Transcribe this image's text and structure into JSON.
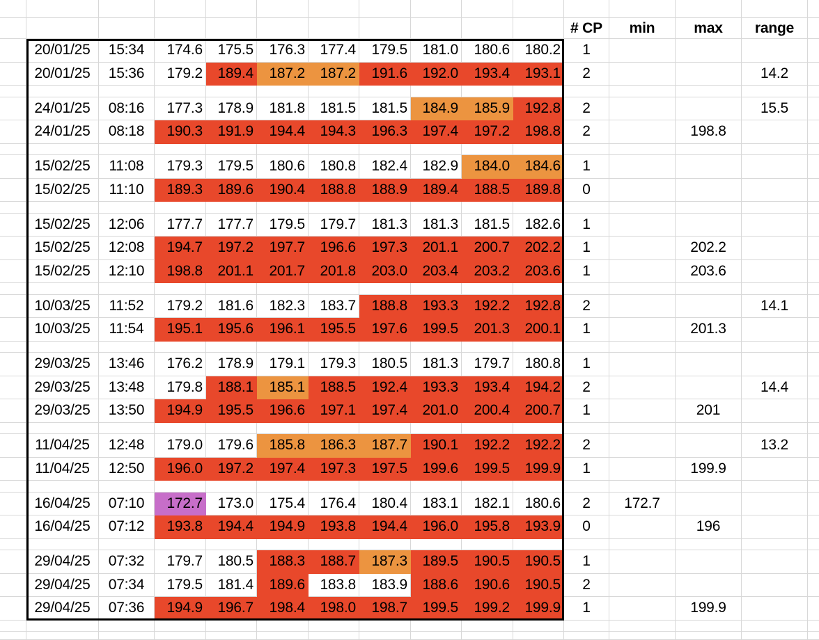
{
  "colors": {
    "fill_red": "#E8482B",
    "fill_orange": "#EC9440",
    "fill_purple": "#C76EC9",
    "gridline": "#D8D8D8",
    "region_border": "#000000"
  },
  "header": {
    "cp": "# CP",
    "min": "min",
    "max": "max",
    "range": "range"
  },
  "groups": [
    {
      "rows": [
        {
          "date": "20/01/25",
          "time": "15:34",
          "values": [
            "174.6",
            "175.5",
            "176.3",
            "177.4",
            "179.5",
            "181.0",
            "180.6",
            "180.2"
          ],
          "fills": [
            "w",
            "w",
            "w",
            "w",
            "w",
            "w",
            "w",
            "w"
          ],
          "cp": "1",
          "min": "",
          "max": "",
          "range": ""
        },
        {
          "date": "20/01/25",
          "time": "15:36",
          "values": [
            "179.2",
            "189.4",
            "187.2",
            "187.2",
            "191.6",
            "192.0",
            "193.4",
            "193.1"
          ],
          "fills": [
            "w",
            "r",
            "o",
            "o",
            "r",
            "r",
            "r",
            "r"
          ],
          "cp": "2",
          "min": "",
          "max": "",
          "range": "14.2"
        }
      ]
    },
    {
      "rows": [
        {
          "date": "24/01/25",
          "time": "08:16",
          "values": [
            "177.3",
            "178.9",
            "181.8",
            "181.5",
            "181.5",
            "184.9",
            "185.9",
            "192.8"
          ],
          "fills": [
            "w",
            "w",
            "w",
            "w",
            "w",
            "o",
            "o",
            "r"
          ],
          "cp": "2",
          "min": "",
          "max": "",
          "range": "15.5"
        },
        {
          "date": "24/01/25",
          "time": "08:18",
          "values": [
            "190.3",
            "191.9",
            "194.4",
            "194.3",
            "196.3",
            "197.4",
            "197.2",
            "198.8"
          ],
          "fills": [
            "r",
            "r",
            "r",
            "r",
            "r",
            "r",
            "r",
            "r"
          ],
          "cp": "2",
          "min": "",
          "max": "198.8",
          "range": ""
        }
      ]
    },
    {
      "rows": [
        {
          "date": "15/02/25",
          "time": "11:08",
          "values": [
            "179.3",
            "179.5",
            "180.6",
            "180.8",
            "182.4",
            "182.9",
            "184.0",
            "184.6"
          ],
          "fills": [
            "w",
            "w",
            "w",
            "w",
            "w",
            "w",
            "o",
            "o"
          ],
          "cp": "1",
          "min": "",
          "max": "",
          "range": ""
        },
        {
          "date": "15/02/25",
          "time": "11:10",
          "values": [
            "189.3",
            "189.6",
            "190.4",
            "188.8",
            "188.9",
            "189.4",
            "188.5",
            "189.8"
          ],
          "fills": [
            "r",
            "r",
            "r",
            "r",
            "r",
            "r",
            "r",
            "r"
          ],
          "cp": "0",
          "min": "",
          "max": "",
          "range": ""
        }
      ]
    },
    {
      "rows": [
        {
          "date": "15/02/25",
          "time": "12:06",
          "values": [
            "177.7",
            "177.7",
            "179.5",
            "179.7",
            "181.3",
            "181.3",
            "181.5",
            "182.6"
          ],
          "fills": [
            "w",
            "w",
            "w",
            "w",
            "w",
            "w",
            "w",
            "w"
          ],
          "cp": "1",
          "min": "",
          "max": "",
          "range": ""
        },
        {
          "date": "15/02/25",
          "time": "12:08",
          "values": [
            "194.7",
            "197.2",
            "197.7",
            "196.6",
            "197.3",
            "201.1",
            "200.7",
            "202.2"
          ],
          "fills": [
            "r",
            "r",
            "r",
            "r",
            "r",
            "r",
            "r",
            "r"
          ],
          "cp": "1",
          "min": "",
          "max": "202.2",
          "range": ""
        },
        {
          "date": "15/02/25",
          "time": "12:10",
          "values": [
            "198.8",
            "201.1",
            "201.7",
            "201.8",
            "203.0",
            "203.4",
            "203.2",
            "203.6"
          ],
          "fills": [
            "r",
            "r",
            "r",
            "r",
            "r",
            "r",
            "r",
            "r"
          ],
          "cp": "1",
          "min": "",
          "max": "203.6",
          "range": ""
        }
      ]
    },
    {
      "rows": [
        {
          "date": "10/03/25",
          "time": "11:52",
          "values": [
            "179.2",
            "181.6",
            "182.3",
            "183.7",
            "188.8",
            "193.3",
            "192.2",
            "192.8"
          ],
          "fills": [
            "w",
            "w",
            "w",
            "w",
            "r",
            "r",
            "r",
            "r"
          ],
          "cp": "2",
          "min": "",
          "max": "",
          "range": "14.1"
        },
        {
          "date": "10/03/25",
          "time": "11:54",
          "values": [
            "195.1",
            "195.6",
            "196.1",
            "195.5",
            "197.6",
            "199.5",
            "201.3",
            "200.1"
          ],
          "fills": [
            "r",
            "r",
            "r",
            "r",
            "r",
            "r",
            "r",
            "r"
          ],
          "cp": "1",
          "min": "",
          "max": "201.3",
          "range": ""
        }
      ]
    },
    {
      "rows": [
        {
          "date": "29/03/25",
          "time": "13:46",
          "values": [
            "176.2",
            "178.9",
            "179.1",
            "179.3",
            "180.5",
            "181.3",
            "179.7",
            "180.8"
          ],
          "fills": [
            "w",
            "w",
            "w",
            "w",
            "w",
            "w",
            "w",
            "w"
          ],
          "cp": "1",
          "min": "",
          "max": "",
          "range": ""
        },
        {
          "date": "29/03/25",
          "time": "13:48",
          "values": [
            "179.8",
            "188.1",
            "185.1",
            "188.5",
            "192.4",
            "193.3",
            "193.4",
            "194.2"
          ],
          "fills": [
            "w",
            "r",
            "o",
            "r",
            "r",
            "r",
            "r",
            "r"
          ],
          "cp": "2",
          "min": "",
          "max": "",
          "range": "14.4"
        },
        {
          "date": "29/03/25",
          "time": "13:50",
          "values": [
            "194.9",
            "195.5",
            "196.6",
            "197.1",
            "197.4",
            "201.0",
            "200.4",
            "200.7"
          ],
          "fills": [
            "r",
            "r",
            "r",
            "r",
            "r",
            "r",
            "r",
            "r"
          ],
          "cp": "1",
          "min": "",
          "max": "201",
          "range": ""
        }
      ]
    },
    {
      "rows": [
        {
          "date": "11/04/25",
          "time": "12:48",
          "values": [
            "179.0",
            "179.6",
            "185.8",
            "186.3",
            "187.7",
            "190.1",
            "192.2",
            "192.2"
          ],
          "fills": [
            "w",
            "w",
            "o",
            "o",
            "o",
            "r",
            "r",
            "r"
          ],
          "cp": "2",
          "min": "",
          "max": "",
          "range": "13.2"
        },
        {
          "date": "11/04/25",
          "time": "12:50",
          "values": [
            "196.0",
            "197.2",
            "197.4",
            "197.3",
            "197.5",
            "199.6",
            "199.5",
            "199.9"
          ],
          "fills": [
            "r",
            "r",
            "r",
            "r",
            "r",
            "r",
            "r",
            "r"
          ],
          "cp": "1",
          "min": "",
          "max": "199.9",
          "range": ""
        }
      ]
    },
    {
      "rows": [
        {
          "date": "16/04/25",
          "time": "07:10",
          "values": [
            "172.7",
            "173.0",
            "175.4",
            "176.4",
            "180.4",
            "183.1",
            "182.1",
            "180.6"
          ],
          "fills": [
            "p",
            "w",
            "w",
            "w",
            "w",
            "w",
            "w",
            "w"
          ],
          "cp": "2",
          "min": "172.7",
          "max": "",
          "range": ""
        },
        {
          "date": "16/04/25",
          "time": "07:12",
          "values": [
            "193.8",
            "194.4",
            "194.9",
            "193.8",
            "194.4",
            "196.0",
            "195.8",
            "193.9"
          ],
          "fills": [
            "r",
            "r",
            "r",
            "r",
            "r",
            "r",
            "r",
            "r"
          ],
          "cp": "0",
          "min": "",
          "max": "196",
          "range": ""
        }
      ]
    },
    {
      "rows": [
        {
          "date": "29/04/25",
          "time": "07:32",
          "values": [
            "179.7",
            "180.5",
            "188.3",
            "188.7",
            "187.3",
            "189.5",
            "190.5",
            "190.5"
          ],
          "fills": [
            "w",
            "w",
            "r",
            "r",
            "o",
            "r",
            "r",
            "r"
          ],
          "cp": "1",
          "min": "",
          "max": "",
          "range": ""
        },
        {
          "date": "29/04/25",
          "time": "07:34",
          "values": [
            "179.5",
            "181.4",
            "189.6",
            "183.8",
            "183.9",
            "188.6",
            "190.6",
            "190.5"
          ],
          "fills": [
            "w",
            "w",
            "r",
            "w",
            "w",
            "r",
            "r",
            "r"
          ],
          "cp": "2",
          "min": "",
          "max": "",
          "range": ""
        },
        {
          "date": "29/04/25",
          "time": "07:36",
          "values": [
            "194.9",
            "196.7",
            "198.4",
            "198.0",
            "198.7",
            "199.5",
            "199.2",
            "199.9"
          ],
          "fills": [
            "r",
            "r",
            "r",
            "r",
            "r",
            "r",
            "r",
            "r"
          ],
          "cp": "1",
          "min": "",
          "max": "199.9",
          "range": ""
        }
      ]
    }
  ]
}
